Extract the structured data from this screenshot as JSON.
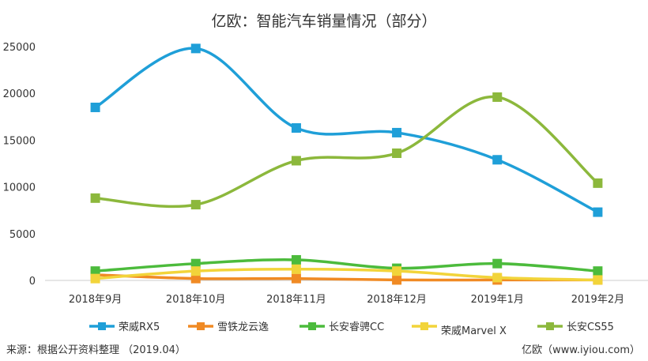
{
  "chart_data": {
    "type": "line",
    "title": "亿欧：智能汽车销量情况（部分）",
    "categories": [
      "2018年9月",
      "2018年10月",
      "2018年11月",
      "2018年12月",
      "2019年1月",
      "2019年2月"
    ],
    "ylim": [
      0,
      25000
    ],
    "yticks": [
      0,
      5000,
      10000,
      15000,
      20000,
      25000
    ],
    "grid": false,
    "legend_position": "bottom",
    "series": [
      {
        "name": "荣威RX5",
        "color": "#1f9fd8",
        "values": [
          18500,
          24800,
          16300,
          15800,
          12900,
          7300
        ]
      },
      {
        "name": "雪铁龙云逸",
        "color": "#f08a24",
        "values": [
          600,
          200,
          200,
          50,
          50,
          50
        ]
      },
      {
        "name": "长安睿骋CC",
        "color": "#4cbb3c",
        "values": [
          1000,
          1800,
          2200,
          1300,
          1800,
          1000
        ]
      },
      {
        "name": "荣威Marvel X",
        "color": "#f2d43a",
        "values": [
          200,
          1000,
          1200,
          1000,
          300,
          50
        ]
      },
      {
        "name": "长安CS55",
        "color": "#8cb83c",
        "values": [
          8800,
          8100,
          12800,
          13600,
          19600,
          10400
        ]
      }
    ]
  },
  "footer": {
    "source": "来源：根据公开资料整理   （2019.04）",
    "brand": "亿欧（www.iyiou.com）"
  }
}
